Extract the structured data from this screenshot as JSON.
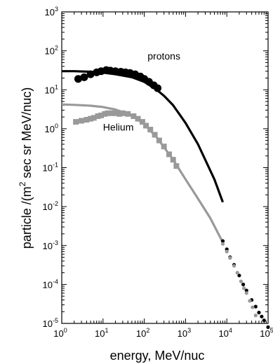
{
  "chart_data": {
    "type": "line",
    "title": "",
    "xlabel": "energy, MeV/nuc",
    "ylabel_prefix": "particle /(m",
    "ylabel_sup": "2",
    "ylabel_suffix": " sec sr MeV/nuc)",
    "xscale": "log",
    "yscale": "log",
    "xlim": [
      1,
      100000
    ],
    "ylim": [
      1e-05,
      1000
    ],
    "x_ticks": [
      {
        "base": "10",
        "exp": "0",
        "value": 1
      },
      {
        "base": "10",
        "exp": "1",
        "value": 10
      },
      {
        "base": "10",
        "exp": "2",
        "value": 100
      },
      {
        "base": "10",
        "exp": "3",
        "value": 1000
      },
      {
        "base": "10",
        "exp": "4",
        "value": 10000
      },
      {
        "base": "10",
        "exp": "5",
        "value": 100000
      }
    ],
    "y_ticks": [
      {
        "base": "10",
        "exp": "3",
        "value": 1000
      },
      {
        "base": "10",
        "exp": "2",
        "value": 100
      },
      {
        "base": "10",
        "exp": "1",
        "value": 10
      },
      {
        "base": "10",
        "exp": "0",
        "value": 1
      },
      {
        "base": "10",
        "exp": "-1",
        "value": 0.1
      },
      {
        "base": "10",
        "exp": "-2",
        "value": 0.01
      },
      {
        "base": "10",
        "exp": "-3",
        "value": 0.001
      },
      {
        "base": "10",
        "exp": "-4",
        "value": 0.0001
      },
      {
        "base": "10",
        "exp": "-5",
        "value": 1e-05
      }
    ],
    "grid": false,
    "annotations": [
      {
        "text": "protons",
        "x": 120,
        "y": 60
      },
      {
        "text": "Helium",
        "x": 10,
        "y": 0.9
      }
    ],
    "series": [
      {
        "id": "protons-model",
        "kind": "line",
        "color": "#000000",
        "x": [
          1,
          2,
          5,
          10,
          20,
          50,
          100,
          200,
          300,
          500,
          1000,
          2000,
          5000,
          8000
        ],
        "y": [
          30,
          30,
          29,
          27.5,
          25,
          21,
          16,
          10,
          7,
          4,
          1.4,
          0.4,
          0.05,
          0.013
        ]
      },
      {
        "id": "protons-extrapolation",
        "kind": "dots",
        "color": "#000000",
        "x": [
          8000,
          10000,
          12000,
          15000,
          20000,
          25000,
          30000,
          40000,
          50000,
          60000,
          70000,
          80000,
          100000
        ],
        "y": [
          0.0013,
          0.0008,
          0.0005,
          0.00032,
          0.00017,
          0.0001,
          7e-05,
          4e-05,
          2.7e-05,
          1.9e-05,
          1.5e-05,
          1.2e-05,
          8e-06
        ]
      },
      {
        "id": "protons-data",
        "kind": "markers",
        "color": "#000000",
        "x": [
          2.5,
          3.5,
          5,
          7,
          9,
          12,
          15,
          20,
          27,
          35,
          45,
          60,
          80,
          100,
          130,
          170,
          210
        ],
        "y": [
          19,
          21,
          25,
          28,
          30,
          32,
          31,
          30,
          29,
          28,
          27,
          25,
          22,
          19,
          16,
          13,
          11
        ]
      },
      {
        "id": "helium-model",
        "kind": "line",
        "color": "#999999",
        "x": [
          1,
          2,
          5,
          10,
          20,
          50,
          100,
          200,
          500,
          1000,
          2000,
          4000,
          8000
        ],
        "y": [
          4.2,
          4.1,
          3.9,
          3.6,
          3.1,
          2.2,
          1.3,
          0.6,
          0.16,
          0.05,
          0.016,
          0.005,
          0.0012
        ]
      },
      {
        "id": "helium-extrapolation",
        "kind": "dots",
        "color": "#999999",
        "x": [
          8000,
          10000,
          12000,
          15000,
          18000,
          22000,
          26000,
          30000,
          36000,
          42000,
          50000
        ],
        "y": [
          0.0011,
          0.0007,
          0.00048,
          0.0003,
          0.0002,
          0.00012,
          8e-05,
          6e-05,
          3.8e-05,
          2.6e-05,
          1.6e-05
        ]
      },
      {
        "id": "helium-data",
        "kind": "markers",
        "color": "#999999",
        "x": [
          2.2,
          3,
          4,
          5,
          6,
          7.5,
          9,
          11,
          13,
          16,
          20,
          25,
          30,
          40,
          55,
          70,
          90,
          110,
          140,
          180,
          230,
          300,
          400,
          500,
          600
        ],
        "y": [
          1.5,
          1.6,
          1.7,
          1.8,
          1.9,
          2.1,
          2.2,
          2.4,
          2.5,
          2.5,
          2.5,
          2.4,
          2.5,
          2.4,
          2.1,
          1.8,
          1.5,
          1.2,
          0.95,
          0.7,
          0.5,
          0.35,
          0.22,
          0.16,
          0.11
        ]
      }
    ]
  }
}
